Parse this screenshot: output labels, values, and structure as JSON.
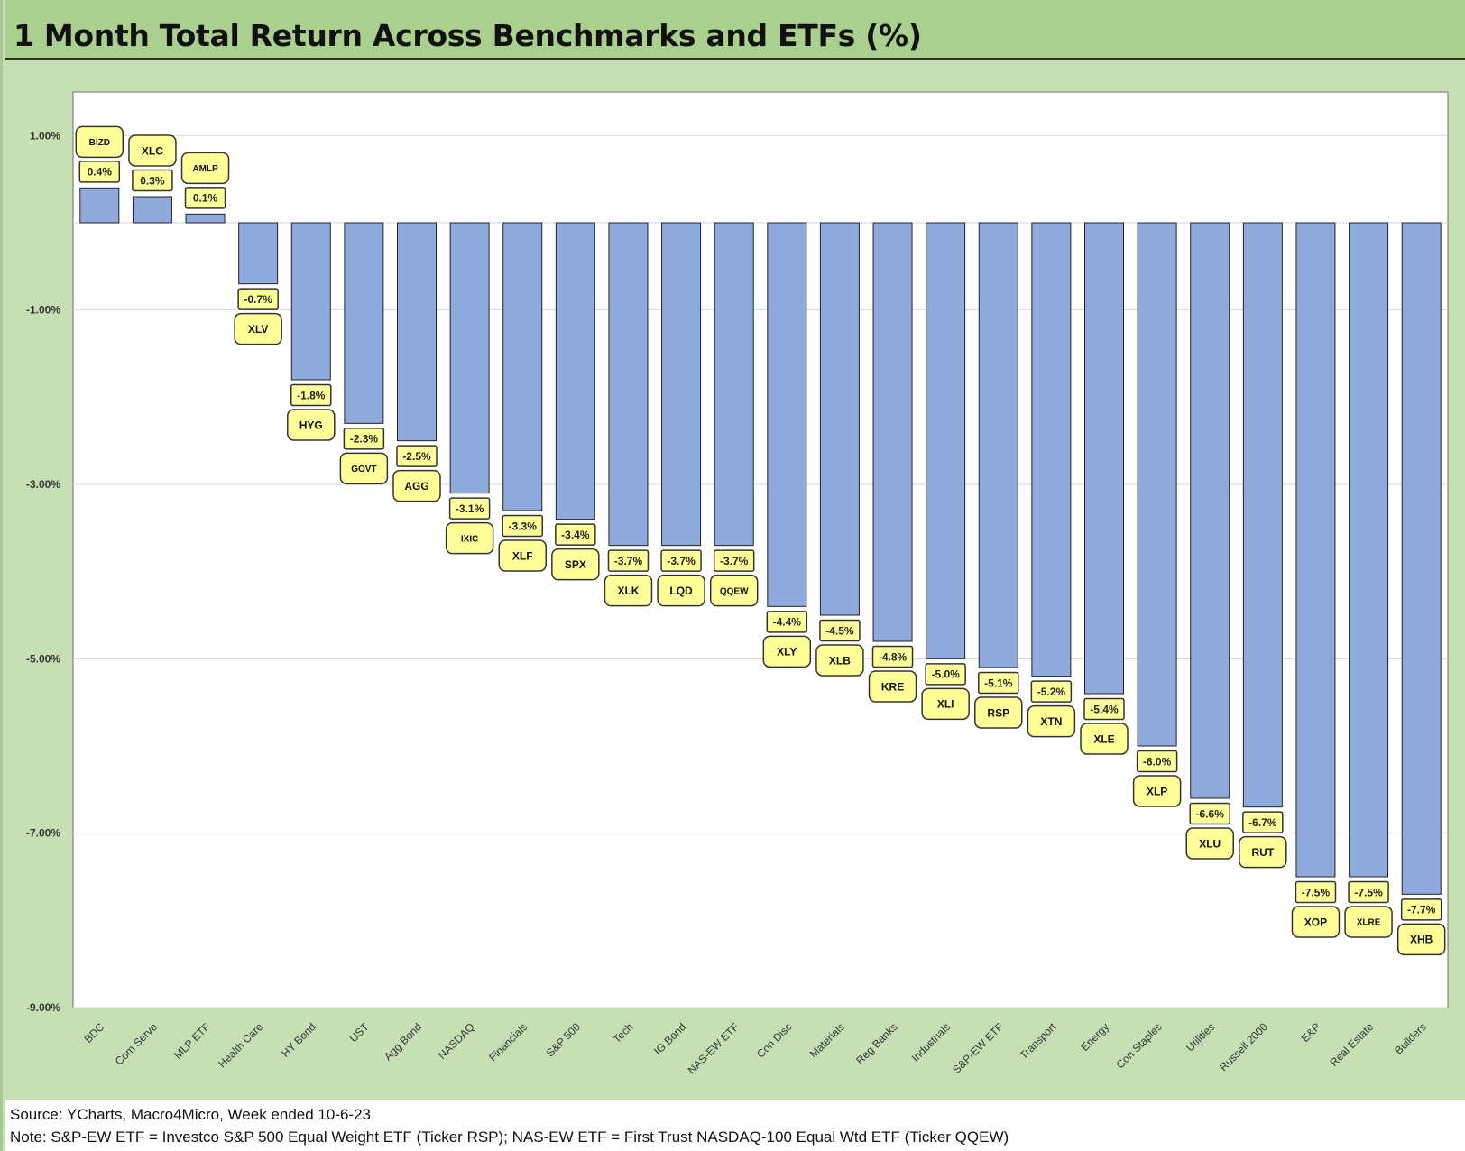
{
  "chart_data": {
    "type": "bar",
    "title": "1 Month Total Return Across Benchmarks and ETFs (%)",
    "xlabel": "",
    "ylabel": "",
    "ylim": [
      -9,
      1.5
    ],
    "y_ticks": [
      1,
      -1,
      -3,
      -5,
      -7,
      -9
    ],
    "y_tick_labels": [
      "1.00%",
      "-1.00%",
      "-3.00%",
      "-5.00%",
      "-7.00%",
      "-9.00%"
    ],
    "grid": true,
    "categories": [
      "BDC",
      "Com Serve",
      "MLP ETF",
      "Health Care",
      "HY Bond",
      "UST",
      "Agg Bond",
      "NASDAQ",
      "Financials",
      "S&P 500",
      "Tech",
      "IG Bond",
      "NAS-EW ETF",
      "Con Disc",
      "Materials",
      "Reg Banks",
      "Industrials",
      "S&P-EW ETF",
      "Transport",
      "Energy",
      "Con Staples",
      "Utilities",
      "Russell 2000",
      "E&P",
      "Real Estate",
      "Builders"
    ],
    "values": [
      0.4,
      0.3,
      0.1,
      -0.7,
      -1.8,
      -2.3,
      -2.5,
      -3.1,
      -3.3,
      -3.4,
      -3.7,
      -3.7,
      -3.7,
      -4.4,
      -4.5,
      -4.8,
      -5.0,
      -5.1,
      -5.2,
      -5.4,
      -6.0,
      -6.6,
      -6.7,
      -7.5,
      -7.5,
      -7.7
    ],
    "value_labels": [
      "0.4%",
      "0.3%",
      "0.1%",
      "-0.7%",
      "-1.8%",
      "-2.3%",
      "-2.5%",
      "-3.1%",
      "-3.3%",
      "-3.4%",
      "-3.7%",
      "-3.7%",
      "-3.7%",
      "-4.4%",
      "-4.5%",
      "-4.8%",
      "-5.0%",
      "-5.1%",
      "-5.2%",
      "-5.4%",
      "-6.0%",
      "-6.6%",
      "-6.7%",
      "-7.5%",
      "-7.5%",
      "-7.7%"
    ],
    "tickers": [
      "BIZD",
      "XLC",
      "AMLP",
      "XLV",
      "HYG",
      "GOVT",
      "AGG",
      "IXIC",
      "XLF",
      "SPX",
      "XLK",
      "LQD",
      "QQEW",
      "XLY",
      "XLB",
      "KRE",
      "XLI",
      "RSP",
      "XTN",
      "XLE",
      "XLP",
      "XLU",
      "RUT",
      "XOP",
      "XLRE",
      "XHB"
    ],
    "bar_color": "#8faadc",
    "label_box_color": "#ffff99"
  },
  "footer": {
    "source": "Source: YCharts, Macro4Micro, Week ended 10-6-23",
    "note": "Note: S&P-EW ETF = Investco S&P 500 Equal Weight ETF (Ticker RSP); NAS-EW ETF = First Trust NASDAQ-100 Equal Wtd ETF (Ticker QQEW)"
  }
}
